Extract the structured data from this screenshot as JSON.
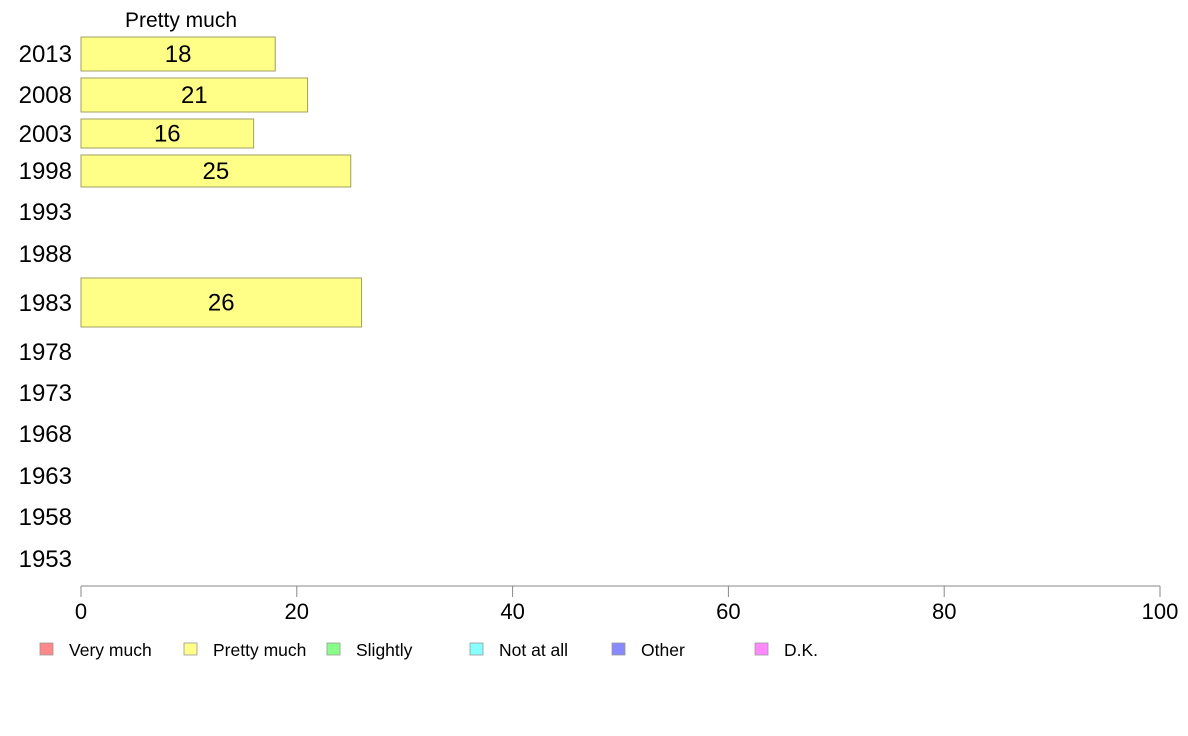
{
  "chart_data": {
    "type": "bar",
    "orientation": "horizontal",
    "series_title": "Pretty much",
    "categories": [
      "2013",
      "2008",
      "2003",
      "1998",
      "1993",
      "1988",
      "1983",
      "1978",
      "1973",
      "1968",
      "1963",
      "1958",
      "1953"
    ],
    "series": [
      {
        "name": "Pretty much",
        "color": "#ffff88",
        "values": [
          18,
          21,
          16,
          25,
          null,
          null,
          26,
          null,
          null,
          null,
          null,
          null,
          null
        ]
      }
    ],
    "x_ticks": [
      "0",
      "20",
      "40",
      "60",
      "80",
      "100"
    ],
    "xlim": [
      0,
      100
    ],
    "grid": false,
    "legend": {
      "position": "bottom-left",
      "items": [
        {
          "label": "Very much",
          "color": "#ff8888"
        },
        {
          "label": "Pretty much",
          "color": "#ffff88"
        },
        {
          "label": "Slightly",
          "color": "#88ff88"
        },
        {
          "label": "Not at all",
          "color": "#88ffff"
        },
        {
          "label": "Other",
          "color": "#8888ff"
        },
        {
          "label": "D.K.",
          "color": "#ff88ff"
        }
      ]
    }
  }
}
